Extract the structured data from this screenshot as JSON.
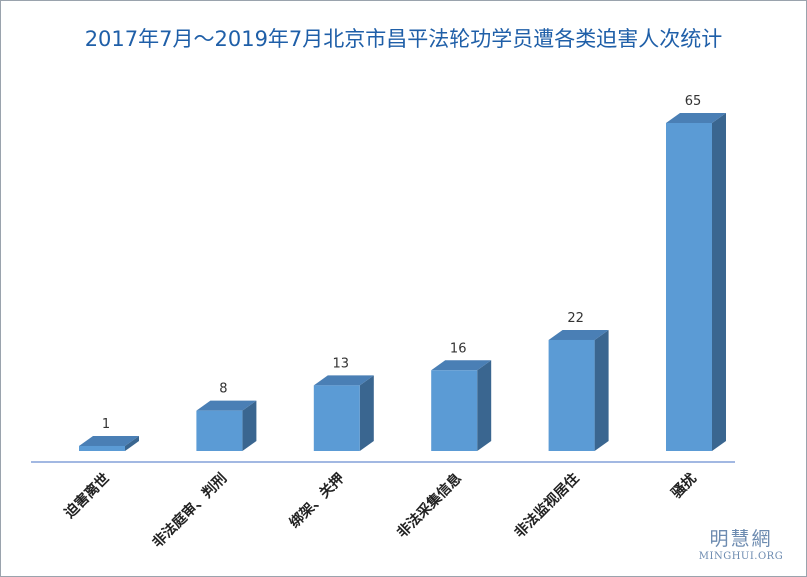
{
  "chart_data": {
    "type": "bar",
    "title": "2017年7月～2019年7月北京市昌平法轮功学员遭各类迫害人次统计",
    "categories": [
      "迫害离世",
      "非法庭审、判刑",
      "绑架、关押",
      "非法采集信息",
      "非法监视居住",
      "骚扰"
    ],
    "values": [
      1,
      8,
      13,
      16,
      22,
      65
    ],
    "xlabel": "",
    "ylabel": "",
    "ylim": [
      0,
      65
    ],
    "grid": false,
    "legend": "none",
    "colors": {
      "front": "#5b9bd5",
      "top": "#4a7fb5",
      "side": "#3a6690",
      "axis": "#4472c4",
      "title": "#1f5fa8"
    }
  },
  "watermark": {
    "cn": "明慧網",
    "en": "MINGHUI.ORG"
  }
}
